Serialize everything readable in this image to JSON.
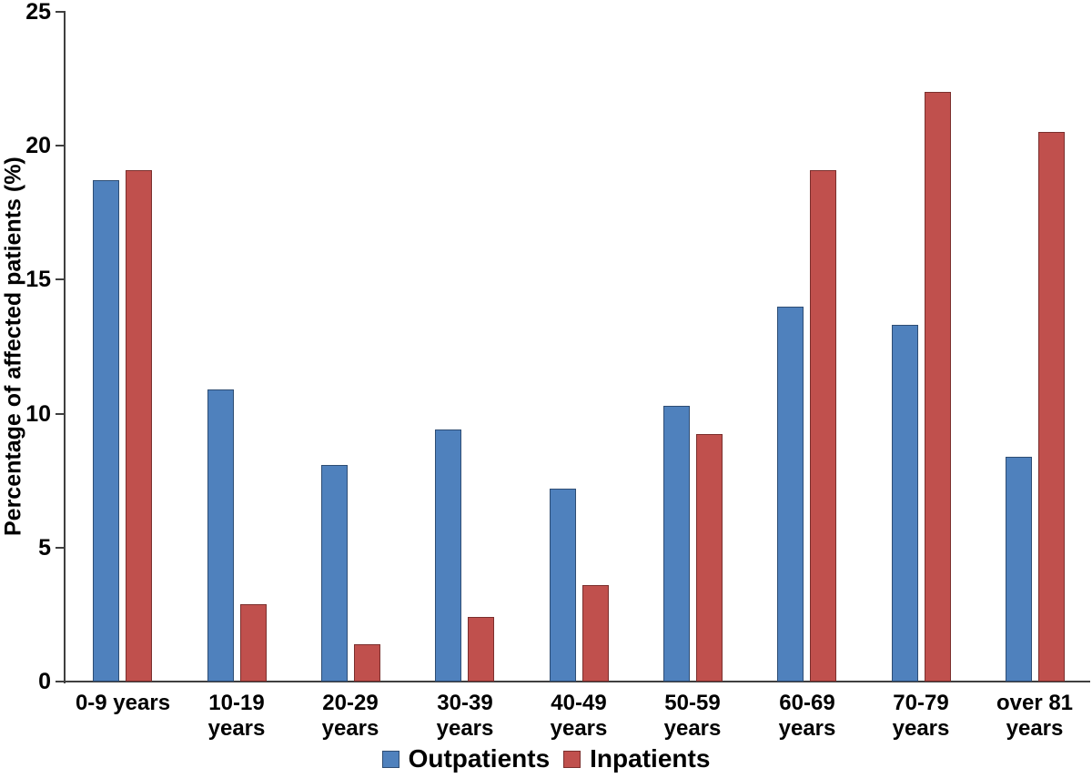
{
  "chart_data": {
    "type": "bar",
    "title": "",
    "ylabel": "Percentage of affected patients (%)",
    "xlabel": "",
    "ylim": [
      0,
      25
    ],
    "yticks": [
      0,
      5,
      10,
      15,
      20,
      25
    ],
    "grid": false,
    "legend_position": "bottom",
    "categories": [
      "0-9 years",
      "10-19 years",
      "20-29 years",
      "30-39 years",
      "40-49 years",
      "50-59 years",
      "60-69 years",
      "70-79 years",
      "over 81 years"
    ],
    "category_label_lines": [
      [
        "0-9 years"
      ],
      [
        "10-19",
        "years"
      ],
      [
        "20-29",
        "years"
      ],
      [
        "30-39",
        "years"
      ],
      [
        "40-49",
        "years"
      ],
      [
        "50-59",
        "years"
      ],
      [
        "60-69",
        "years"
      ],
      [
        "70-79",
        "years"
      ],
      [
        "over 81",
        "years"
      ]
    ],
    "series": [
      {
        "name": "Outpatients",
        "color": "#4F81BD",
        "border_color": "#2E4D74",
        "values": [
          18.7,
          10.9,
          8.1,
          9.4,
          7.2,
          10.3,
          14.0,
          13.3,
          8.4
        ]
      },
      {
        "name": "Inpatients",
        "color": "#C0504D",
        "border_color": "#7B2F2D",
        "values": [
          19.1,
          2.9,
          1.4,
          2.4,
          3.6,
          9.25,
          19.1,
          22.0,
          20.5
        ]
      }
    ]
  },
  "colors": {
    "axis": "#3F3F3F",
    "text": "#000000",
    "background": "#FFFFFF"
  }
}
